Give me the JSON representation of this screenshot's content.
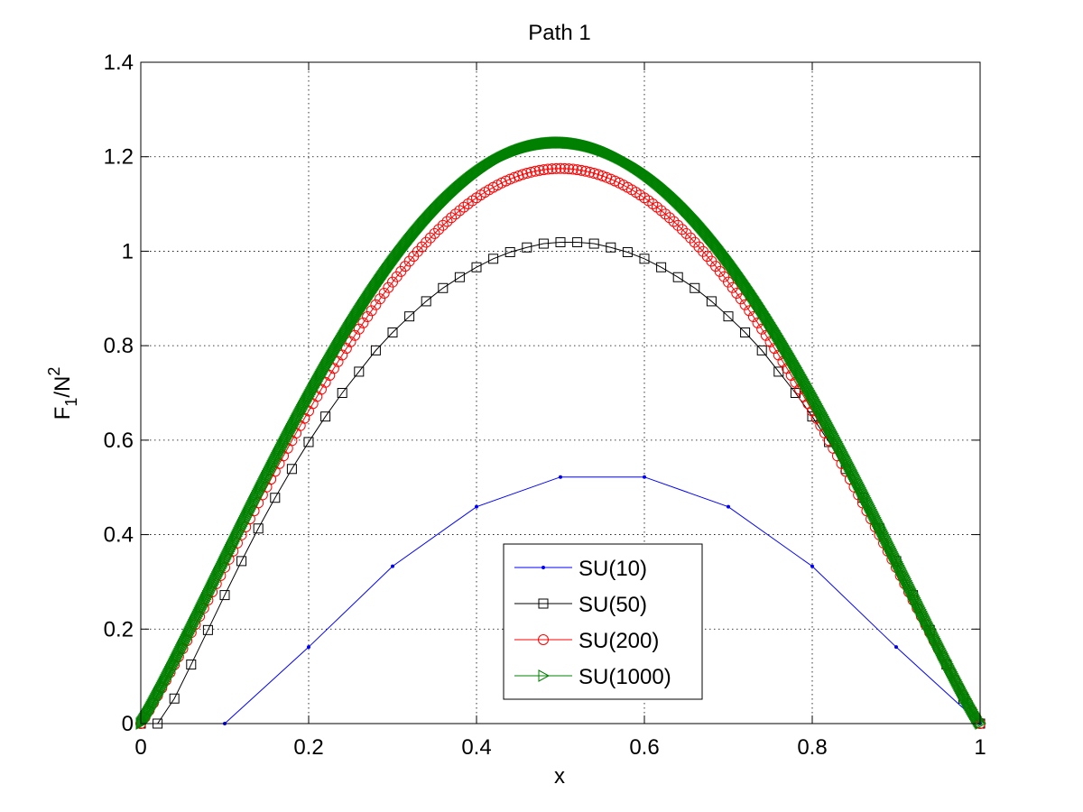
{
  "chart_data": {
    "type": "line",
    "title": "Path 1",
    "xlabel": "x",
    "ylabel": {
      "base": "F",
      "sub": "1",
      "mid": "/N",
      "sup": "2"
    },
    "xlim": [
      0,
      1
    ],
    "ylim": [
      0,
      1.4
    ],
    "xticks": [
      0,
      0.2,
      0.4,
      0.6,
      0.8,
      1
    ],
    "xtick_labels": [
      "0",
      "0.2",
      "0.4",
      "0.6",
      "0.8",
      "1"
    ],
    "yticks": [
      0,
      0.2,
      0.4,
      0.6,
      0.8,
      1,
      1.2,
      1.4
    ],
    "ytick_labels": [
      "0",
      "0.2",
      "0.4",
      "0.6",
      "0.8",
      "1",
      "1.2",
      "1.4"
    ],
    "grid": true,
    "legend_position": "bottom-center",
    "series": [
      {
        "name": "SU(10)",
        "color": "#0000ff",
        "marker": "dot",
        "x": [
          0.1,
          0.2,
          0.3,
          0.4,
          0.5,
          0.6,
          0.7,
          0.8,
          0.9,
          1.0
        ],
        "y": [
          0.0,
          0.162,
          0.333,
          0.459,
          0.522,
          0.522,
          0.459,
          0.333,
          0.162,
          0.0
        ]
      },
      {
        "name": "SU(50)",
        "color": "#000000",
        "marker": "square",
        "x": [
          0,
          0.02,
          0.04,
          0.06,
          0.08,
          0.1,
          0.12,
          0.14,
          0.16,
          0.18,
          0.2,
          0.22,
          0.24,
          0.26,
          0.28,
          0.3,
          0.32,
          0.34,
          0.36,
          0.38,
          0.4,
          0.42,
          0.44,
          0.46,
          0.48,
          0.5,
          0.52,
          0.54,
          0.56,
          0.58,
          0.6,
          0.62,
          0.64,
          0.66,
          0.68,
          0.7,
          0.72,
          0.74,
          0.76,
          0.78,
          0.8,
          0.82,
          0.84,
          0.86,
          0.88,
          0.9,
          0.92,
          0.94,
          0.96,
          0.98,
          1.0
        ],
        "y": [
          0.0,
          0.0,
          0.053,
          0.125,
          0.198,
          0.272,
          0.344,
          0.413,
          0.478,
          0.539,
          0.596,
          0.65,
          0.7,
          0.745,
          0.79,
          0.828,
          0.862,
          0.894,
          0.922,
          0.945,
          0.966,
          0.984,
          0.998,
          1.008,
          1.016,
          1.019,
          1.019,
          1.016,
          1.008,
          0.998,
          0.984,
          0.966,
          0.945,
          0.922,
          0.894,
          0.862,
          0.828,
          0.79,
          0.745,
          0.7,
          0.65,
          0.596,
          0.539,
          0.478,
          0.413,
          0.344,
          0.272,
          0.198,
          0.125,
          0.053,
          0.0
        ]
      },
      {
        "name": "SU(200)",
        "color": "#ff0000",
        "marker": "circle",
        "peak": 1.175,
        "points": 200
      },
      {
        "name": "SU(1000)",
        "color": "#008000",
        "marker": "triangle-right",
        "peak": 1.23,
        "points": 1000
      }
    ]
  }
}
